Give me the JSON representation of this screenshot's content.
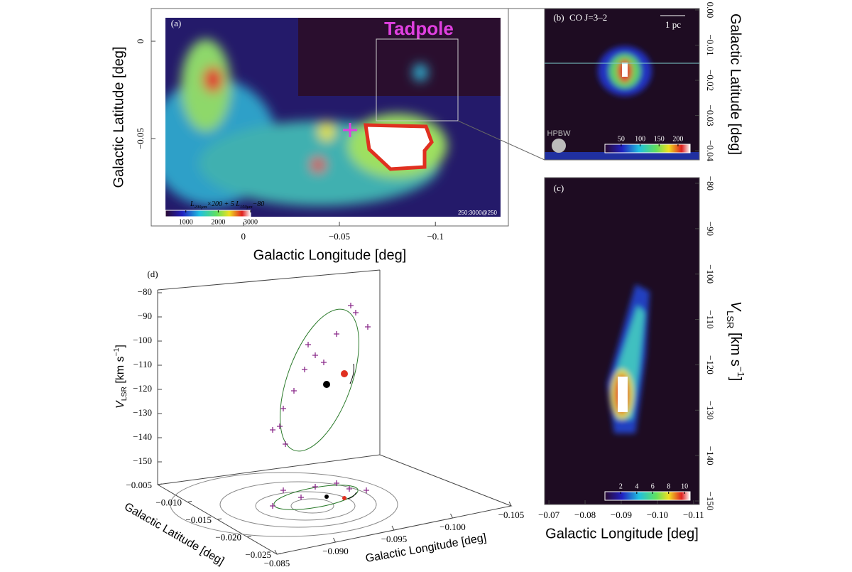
{
  "chart_data": [
    {
      "type": "image",
      "panel": "(a)",
      "xlabel": "Galactic Longitude [deg]",
      "ylabel": "Galactic Latitude [deg]",
      "xlim": [
        0.048,
        -0.138
      ],
      "ylim": [
        -0.0949,
        0.0168
      ],
      "xticks": [
        0,
        {
          "value": -0.05,
          "label": "−0.05"
        },
        {
          "value": -0.1,
          "label": "−0.1"
        }
      ],
      "yticks": [
        0,
        {
          "value": -0.05,
          "label": "−0.05"
        }
      ],
      "colorbar": {
        "label": [
          "L",
          "200μm",
          "×200 + 5 ",
          "L",
          "150μm",
          "−80"
        ],
        "clim": [
          370,
          3000
        ],
        "ticks": [
          1000,
          2000,
          3000
        ]
      },
      "annotations": [
        "Tadpole",
        "250:3000@250"
      ]
    },
    {
      "type": "image",
      "panel": "(b)",
      "title": "CO J=3–2",
      "ylabel": "Galactic Latitude [deg]",
      "ylim": [
        -0.0426,
        0.0004
      ],
      "yticks": [
        {
          "value": 0,
          "label": "0.00"
        },
        {
          "value": -0.01,
          "label": "−0.01"
        },
        {
          "value": -0.02,
          "label": "−0.02"
        },
        {
          "value": -0.03,
          "label": "−0.03"
        },
        {
          "value": -0.04,
          "label": "−0.04"
        }
      ],
      "colorbar": {
        "clim": [
          7,
          232
        ],
        "ticks": [
          50,
          100,
          150,
          200
        ]
      },
      "annotations": [
        "1 pc",
        "HPBW"
      ]
    },
    {
      "type": "image",
      "panel": "(c)",
      "xlabel": "Galactic Longitude [deg]",
      "ylabel": [
        "V",
        "LSR",
        " [km s",
        "−1",
        "]"
      ],
      "xlim": [
        -0.0688,
        -0.1116
      ],
      "ylim": [
        -150.78,
        -78.75
      ],
      "xticks": [
        {
          "value": -0.07,
          "label": "−0.07"
        },
        {
          "value": -0.08,
          "label": "−0.08"
        },
        {
          "value": -0.09,
          "label": "−0.09"
        },
        {
          "value": -0.1,
          "label": "−0.10"
        },
        {
          "value": -0.11,
          "label": "−0.11"
        }
      ],
      "yticks": [
        {
          "value": -80,
          "label": "−80"
        },
        {
          "value": -90,
          "label": "−90"
        },
        {
          "value": -100,
          "label": "−100"
        },
        {
          "value": -110,
          "label": "−110"
        },
        {
          "value": -120,
          "label": "−120"
        },
        {
          "value": -130,
          "label": "−130"
        },
        {
          "value": -140,
          "label": "−140"
        },
        {
          "value": -150,
          "label": "−150"
        }
      ],
      "colorbar": {
        "clim": [
          0,
          10.7
        ],
        "ticks": [
          2,
          4,
          6,
          8,
          10
        ]
      }
    },
    {
      "type": "scatter3d",
      "panel": "(d)",
      "xlabel": "Galactic Longitude [deg]",
      "ylabel": "Galactic Latitude [deg]",
      "zlabel": [
        "V",
        "LSR",
        " [km s",
        "−1",
        "]"
      ],
      "xlim": [
        -0.085,
        -0.105
      ],
      "ylim": [
        -0.005,
        -0.025
      ],
      "zlim": [
        -80,
        -160
      ],
      "xticks": [
        {
          "value": -0.085,
          "label": "−0.085"
        },
        {
          "value": -0.09,
          "label": "−0.090"
        },
        {
          "value": -0.095,
          "label": "−0.095"
        },
        {
          "value": -0.1,
          "label": "−0.100"
        },
        {
          "value": -0.105,
          "label": "−0.105"
        }
      ],
      "yticks": [
        {
          "value": -0.005,
          "label": "−0.005"
        },
        {
          "value": -0.01,
          "label": "−0.010"
        },
        {
          "value": -0.015,
          "label": "−0.015"
        },
        {
          "value": -0.02,
          "label": "−0.020"
        },
        {
          "value": -0.025,
          "label": "−0.025"
        }
      ],
      "zticks": [
        {
          "value": -80,
          "label": "−80"
        },
        {
          "value": -90,
          "label": "−90"
        },
        {
          "value": -100,
          "label": "−100"
        },
        {
          "value": -110,
          "label": "−110"
        },
        {
          "value": -120,
          "label": "−120"
        },
        {
          "value": -130,
          "label": "−130"
        },
        {
          "value": -140,
          "label": "−140"
        },
        {
          "value": -150,
          "label": "−150"
        }
      ]
    }
  ]
}
